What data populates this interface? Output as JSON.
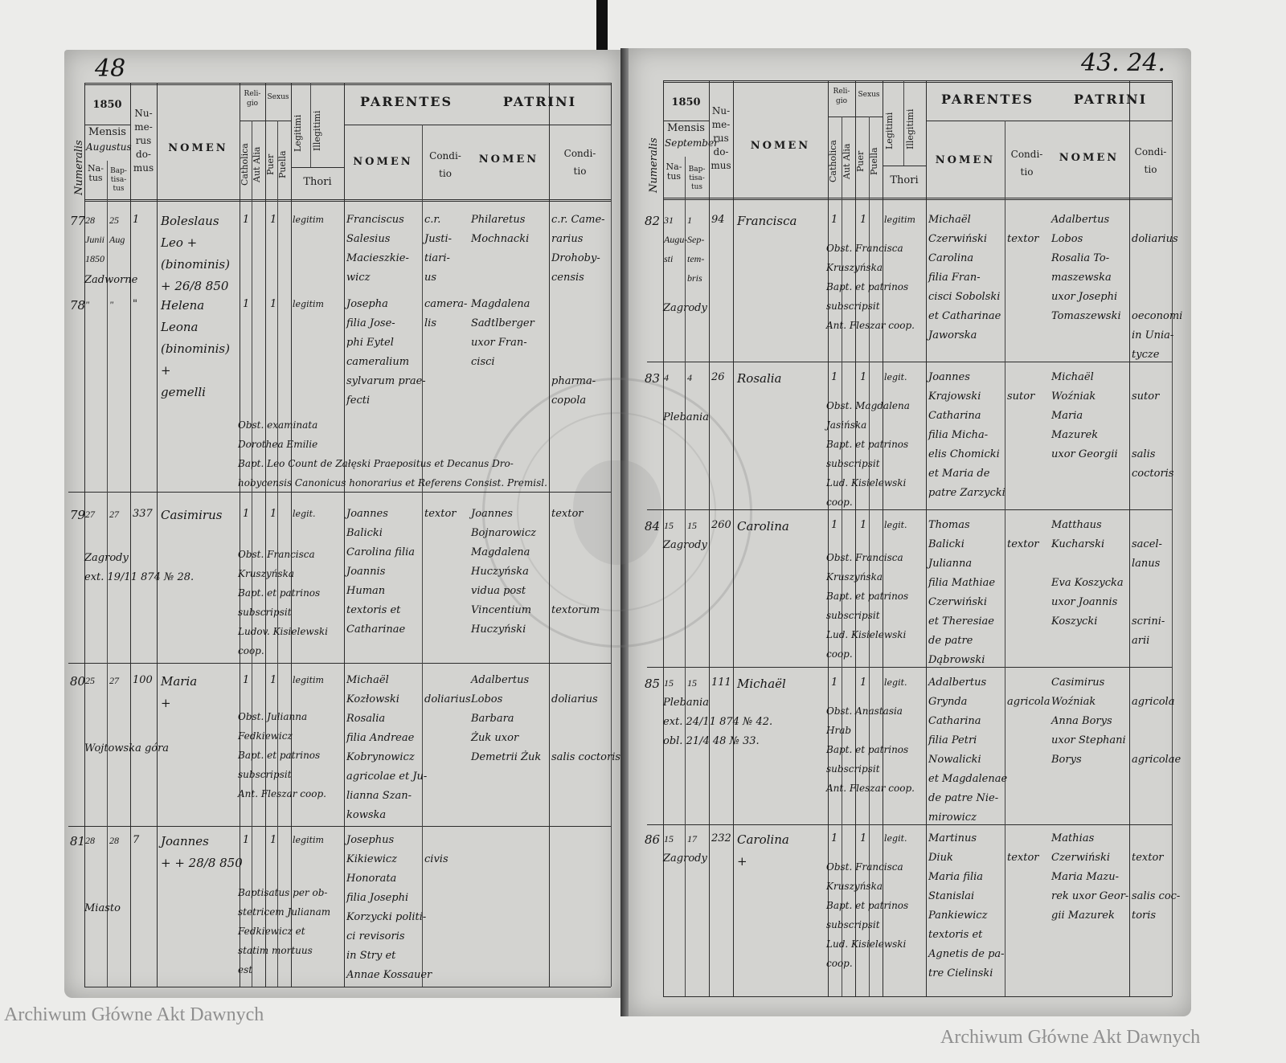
{
  "watermark": "Archiwum Główne Akt Dawnych",
  "stamp_text": "ARCHIWUM GŁÓWNE AKT DAWNYCH",
  "header": {
    "numerus": "Numeralis",
    "year": "1850",
    "mensis": "Mensis",
    "natus": "Na-\ntus",
    "baptisatus": "Bap-\ntisa-\ntus",
    "numerus_domus": "Nu-\nme-\nrus\ndo-\nmus",
    "nomen": "NOMEN",
    "religio": "Reli-\ngio",
    "sexus": "Sexus",
    "catholica": "Catholica",
    "aut_alia": "Aut Alia",
    "puer": "Puer",
    "puella": "Puella",
    "legitimi": "Legitimi",
    "illegitimi": "Illegitimi",
    "thori": "Thori",
    "parentes": "PARENTES",
    "patrini": "PATRINI",
    "sub_nomen": "NOMEN",
    "conditio": "Condi-\ntio"
  },
  "pages": [
    {
      "page_number": "48",
      "month": "Augustus",
      "entries": [
        {
          "numerus": "77",
          "natus": "28\nJunii\n1850",
          "baptisatus": "25\nAug",
          "domus": "1",
          "place": "Zadworne",
          "nomen": "Boleslaus\nLeo +\n(binominis)\n+ 26/8 850",
          "catholica": "1",
          "sex": "1",
          "legit": "legitim",
          "parentes_nomen": "Franciscus\nSalesius\nMacieszkie-\nwicz",
          "parentes_conditio": "c.r.\nJusti-\ntiari-\nus",
          "patrini_nomen": "Philaretus\nMochnacki",
          "patrini_conditio": "c.r. Came-\nrarius\nDrohoby-\ncensis",
          "note": ""
        },
        {
          "numerus": "78",
          "natus": "\"",
          "baptisatus": "\"",
          "domus": "\"",
          "place": "",
          "nomen": "Helena\nLeona\n(binominis)\n+\ngemelli",
          "catholica": "1",
          "sex": "1",
          "legit": "legitim",
          "parentes_nomen": "Josepha\nfilia Jose-\nphi Eytel\ncameralium\nsylvarum prae-\nfecti",
          "parentes_conditio": "camera-\nlis",
          "patrini_nomen": "Magdalena\nSadtlberger\nuxor Fran-\ncisci",
          "patrini_conditio": "\n\n\n\npharma-\ncopola",
          "note": "Obst. examinata\nDorothea Emilie\nBapt. Leo Count de Załęski Praepositus et Decanus Dro-\nhobycensis Canonicus honorarius et Referens Consist. Premisl."
        },
        {
          "numerus": "79",
          "natus": "27",
          "baptisatus": "27",
          "domus": "337",
          "place": "Zagrody\next. 19/11 874 № 28.",
          "nomen": "Casimirus",
          "catholica": "1",
          "sex": "1",
          "legit": "legit.",
          "parentes_nomen": "Joannes\nBalicki\nCarolina filia\nJoannis\nHuman\ntextoris et\nCatharinae",
          "parentes_conditio": "textor",
          "patrini_nomen": "Joannes\nBojnarowicz\nMagdalena\nHuczyńska\nvidua post\nVincentium\nHuczyński",
          "patrini_conditio": "textor\n\n\n\n\ntextorum",
          "note": "Obst. Francisca\nKruszyńska\nBapt. et patrinos\nsubscripsit\nLudov. Kisielewski\ncoop."
        },
        {
          "numerus": "80",
          "natus": "25",
          "baptisatus": "27",
          "domus": "100",
          "place": "Wojtowska góra",
          "nomen": "Maria\n+",
          "catholica": "1",
          "sex": "1",
          "legit": "legitim",
          "parentes_nomen": "Michaël\nKozłowski\nRosalia\nfilia Andreae\nKobrynowicz\nagricolae et Ju-\nlianna Szan-\nkowska",
          "parentes_conditio": "\ndoliarius",
          "patrini_nomen": "Adalbertus\nLobos\nBarbara\nŻuk uxor\nDemetrii Żuk",
          "patrini_conditio": "\ndoliarius\n\n\nsalis coctoris",
          "note": "Obst. Julianna\nFedkiewicz\nBapt. et patrinos\nsubscripsit\nAnt. Fleszar coop."
        },
        {
          "numerus": "81",
          "natus": "28",
          "baptisatus": "28",
          "domus": "7",
          "place": "Miasto",
          "nomen": "Joannes\n+ + 28/8 850",
          "catholica": "1",
          "sex": "1",
          "legit": "legitim",
          "parentes_nomen": "Josephus\nKikiewicz\nHonorata\nfilia Josephi\nKorzycki politi-\nci revisoris\nin Stry et\nAnnae Kossauer",
          "parentes_conditio": "\ncivis",
          "patrini_nomen": "",
          "patrini_conditio": "",
          "note": "Baptisatus per ob-\nstetricem Julianam\nFedkiewicz et\nstatim mortuus\nest"
        }
      ]
    },
    {
      "page_number": "43. 24.",
      "month": "September",
      "entries": [
        {
          "numerus": "82",
          "natus": "31\nAugu-\nsti",
          "baptisatus": "1\nSep-\ntem-\nbris",
          "domus": "94",
          "place": "Zagrody",
          "nomen": "Francisca",
          "catholica": "1",
          "sex": "1",
          "legit": "legitim",
          "parentes_nomen": "Michaël\nCzerwiński\nCarolina\nfilia Fran-\ncisci Sobolski\net Catharinae\nJaworska",
          "parentes_conditio": "\ntextor",
          "patrini_nomen": "Adalbertus\nLobos\nRosalia To-\nmaszewska\nuxor Josephi\nTomaszewski",
          "patrini_conditio": "\ndoliarius\n\n\n\noeconomi\nin Unia-\ntycze",
          "note": "Obst. Francisca\nKruszyńska\nBapt. et patrinos\nsubscripsit\nAnt. Fleszar coop."
        },
        {
          "numerus": "83",
          "natus": "4",
          "baptisatus": "4",
          "domus": "26",
          "place": "Plebania",
          "nomen": "Rosalia",
          "catholica": "1",
          "sex": "1",
          "legit": "legit.",
          "parentes_nomen": "Joannes\nKrajowski\nCatharina\nfilia Micha-\nelis Chomicki\net Maria de\npatre Zarzycki",
          "parentes_conditio": "\nsutor",
          "patrini_nomen": "Michaël\nWoźniak\nMaria\nMazurek\nuxor Georgii",
          "patrini_conditio": "\nsutor\n\n\nsalis\ncoctoris",
          "note": "Obst. Magdalena\nJasińska\nBapt. et patrinos\nsubscripsit\nLud. Kisielewski\ncoop."
        },
        {
          "numerus": "84",
          "natus": "15",
          "baptisatus": "15",
          "domus": "260",
          "place": "Zagrody",
          "nomen": "Carolina",
          "catholica": "1",
          "sex": "1",
          "legit": "legit.",
          "parentes_nomen": "Thomas\nBalicki\nJulianna\nfilia Mathiae\nCzerwiński\net Theresiae\nde patre\nDąbrowski",
          "parentes_conditio": "\ntextor",
          "patrini_nomen": "Matthaus\nKucharski\n\nEva Koszycka\nuxor Joannis\nKoszycki",
          "patrini_conditio": "\nsacel-\nlanus\n\n\nscrini-\narii",
          "note": "Obst. Francisca\nKruszyńska\nBapt. et patrinos\nsubscripsit\nLud. Kisielewski\ncoop."
        },
        {
          "numerus": "85",
          "natus": "15",
          "baptisatus": "15",
          "domus": "111",
          "place": "Plebania\next. 24/11 874 № 42.\nobl. 21/4 48 № 33.",
          "nomen": "Michaël",
          "catholica": "1",
          "sex": "1",
          "legit": "legit.",
          "parentes_nomen": "Adalbertus\nGrynda\nCatharina\nfilia Petri\nNowalicki\net Magdalenae\nde patre Nie-\nmirowicz",
          "parentes_conditio": "\nagricola",
          "patrini_nomen": "Casimirus\nWoźniak\nAnna Borys\nuxor Stephani\nBorys",
          "patrini_conditio": "\nagricola\n\n\nagricolae",
          "note": "Obst. Anastasia\nHrab\nBapt. et patrinos\nsubscripsit\nAnt. Fleszar coop."
        },
        {
          "numerus": "86",
          "natus": "15",
          "baptisatus": "17",
          "domus": "232",
          "place": "Zagrody",
          "nomen": "Carolina\n+",
          "catholica": "1",
          "sex": "1",
          "legit": "legit.",
          "parentes_nomen": "Martinus\nDiuk\nMaria filia\nStanislai\nPankiewicz\ntextoris et\nAgnetis de pa-\ntre Cielinski",
          "parentes_conditio": "\ntextor",
          "patrini_nomen": "Mathias\nCzerwiński\nMaria Mazu-\nrek uxor Geor-\ngii Mazurek",
          "patrini_conditio": "\ntextor\n\nsalis coc-\ntoris",
          "note": "Obst. Francisca\nKruszyńska\nBapt. et patrinos\nsubscripsit\nLud. Kisielewski\ncoop."
        }
      ]
    }
  ]
}
